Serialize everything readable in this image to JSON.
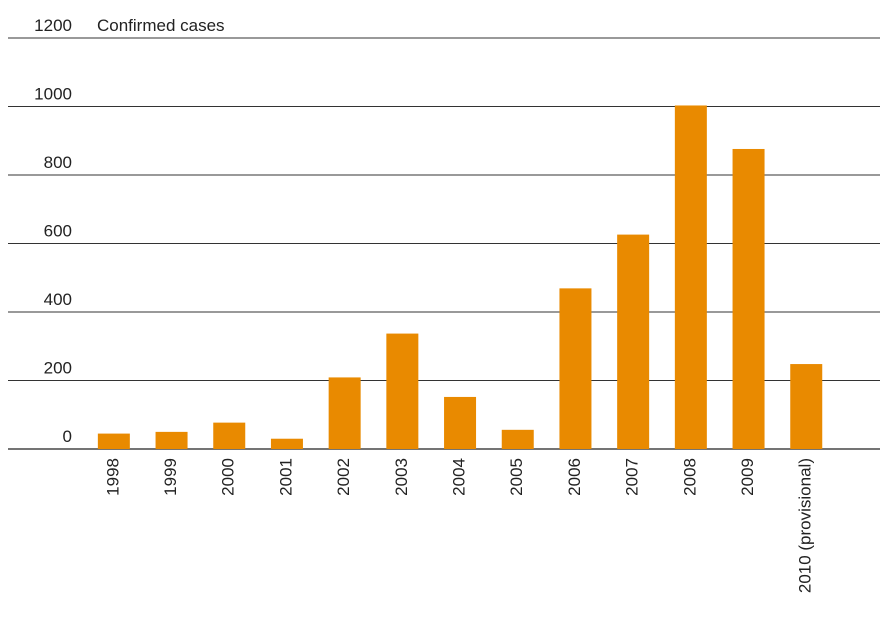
{
  "chart_data": {
    "type": "bar",
    "ylabel": "Confirmed cases",
    "ylim": [
      0,
      1200
    ],
    "yticks": [
      0,
      200,
      400,
      600,
      800,
      1000,
      1200
    ],
    "grid": true,
    "color": "#E98A00",
    "categories": [
      "1998",
      "1999",
      "2000",
      "2001",
      "2002",
      "2003",
      "2004",
      "2005",
      "2006",
      "2007",
      "2008",
      "2009",
      "2010 (provisional)"
    ],
    "values": [
      45,
      50,
      77,
      30,
      209,
      337,
      152,
      56,
      469,
      626,
      1003,
      876,
      248
    ]
  }
}
